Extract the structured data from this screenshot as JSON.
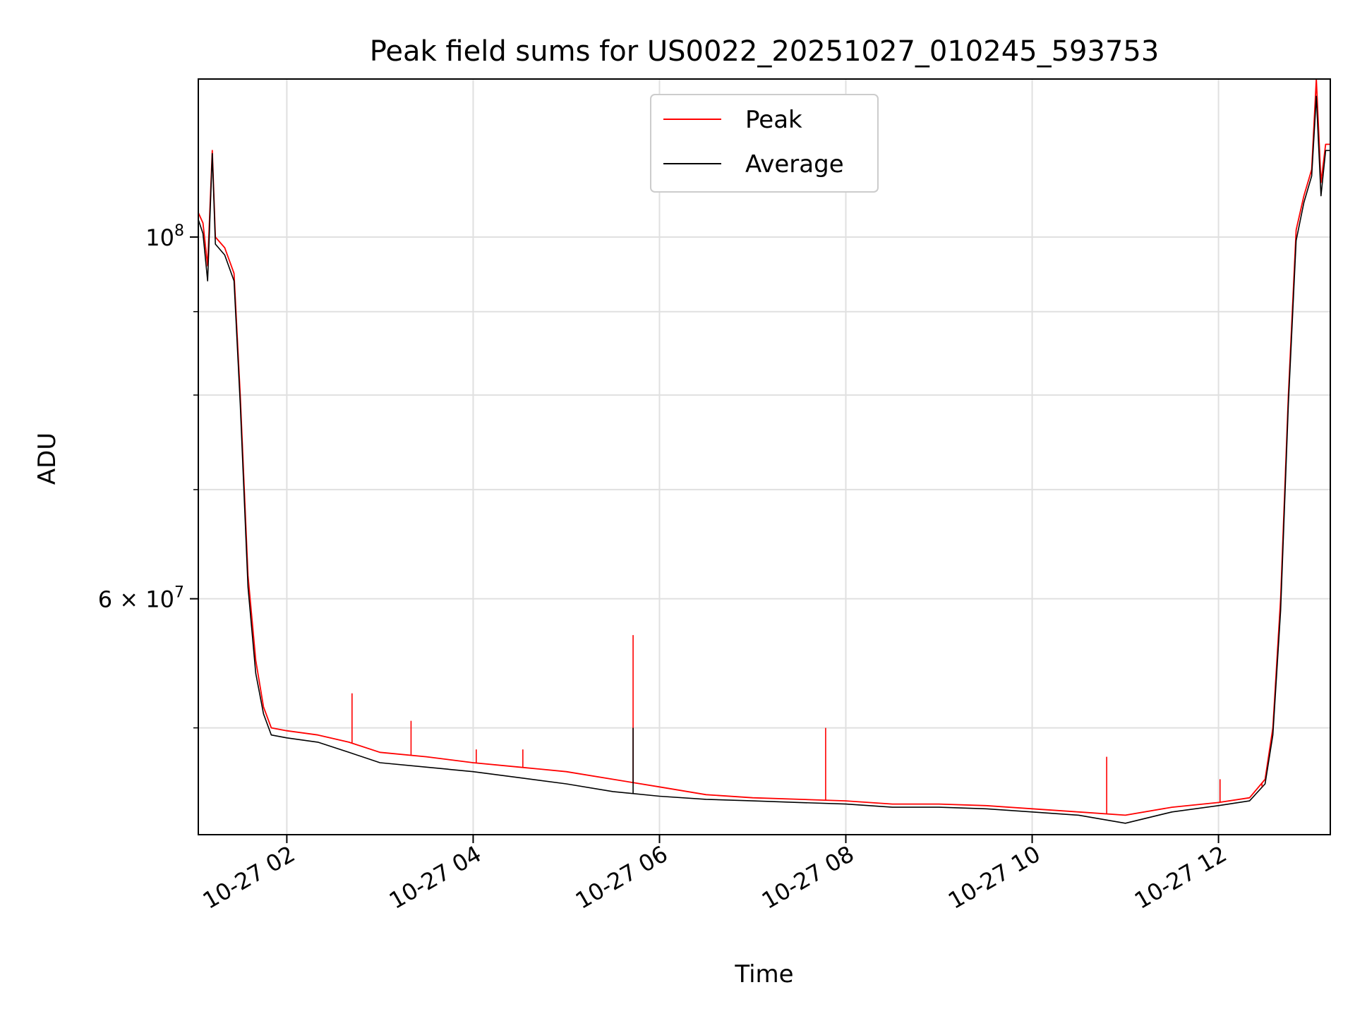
{
  "chart_data": {
    "type": "line",
    "title": "Peak field sums for US0022_20251027_010245_593753",
    "xlabel": "Time",
    "ylabel": "ADU",
    "y_scale": "log",
    "grid": true,
    "legend_position": "top-center",
    "xlim": [
      "2025-10-27 01:03",
      "2025-10-27 13:12"
    ],
    "ylim": [
      43000000,
      125000000
    ],
    "x_ticks": [
      {
        "value": "2025-10-27 02:00",
        "label": "10-27 02"
      },
      {
        "value": "2025-10-27 04:00",
        "label": "10-27 04"
      },
      {
        "value": "2025-10-27 06:00",
        "label": "10-27 06"
      },
      {
        "value": "2025-10-27 08:00",
        "label": "10-27 08"
      },
      {
        "value": "2025-10-27 10:00",
        "label": "10-27 10"
      },
      {
        "value": "2025-10-27 12:00",
        "label": "10-27 12"
      }
    ],
    "y_ticks": [
      {
        "value": 100000000,
        "base": "10",
        "exp": "8",
        "mantissa": ""
      },
      {
        "value": 60000000,
        "base": "10",
        "exp": "7",
        "mantissa": "6 × "
      }
    ],
    "y_minor_ticks": [
      50000000,
      70000000,
      80000000,
      90000000
    ],
    "series": [
      {
        "name": "Peak",
        "color": "#ff0000",
        "points": [
          [
            "2025-10-27 01:03",
            103500000
          ],
          [
            "2025-10-27 01:06",
            102000000
          ],
          [
            "2025-10-27 01:09",
            96000000
          ],
          [
            "2025-10-27 01:12",
            113000000
          ],
          [
            "2025-10-27 01:14",
            100000000
          ],
          [
            "2025-10-27 01:20",
            98500000
          ],
          [
            "2025-10-27 01:26",
            95000000
          ],
          [
            "2025-10-27 01:30",
            80000000
          ],
          [
            "2025-10-27 01:35",
            62000000
          ],
          [
            "2025-10-27 01:40",
            55000000
          ],
          [
            "2025-10-27 01:45",
            51500000
          ],
          [
            "2025-10-27 01:50",
            50000000
          ],
          [
            "2025-10-27 02:00",
            49800000
          ],
          [
            "2025-10-27 02:20",
            49500000
          ],
          [
            "2025-10-27 02:40",
            49000000
          ],
          [
            "2025-10-27 03:00",
            48300000
          ],
          [
            "2025-10-27 03:30",
            48000000
          ],
          [
            "2025-10-27 04:00",
            47600000
          ],
          [
            "2025-10-27 04:30",
            47300000
          ],
          [
            "2025-10-27 05:00",
            47000000
          ],
          [
            "2025-10-27 05:30",
            46500000
          ],
          [
            "2025-10-27 06:00",
            46000000
          ],
          [
            "2025-10-27 06:30",
            45500000
          ],
          [
            "2025-10-27 07:00",
            45300000
          ],
          [
            "2025-10-27 07:30",
            45200000
          ],
          [
            "2025-10-27 08:00",
            45100000
          ],
          [
            "2025-10-27 08:30",
            44900000
          ],
          [
            "2025-10-27 09:00",
            44900000
          ],
          [
            "2025-10-27 09:30",
            44800000
          ],
          [
            "2025-10-27 10:00",
            44600000
          ],
          [
            "2025-10-27 10:30",
            44400000
          ],
          [
            "2025-10-27 11:00",
            44200000
          ],
          [
            "2025-10-27 11:30",
            44700000
          ],
          [
            "2025-10-27 12:00",
            45000000
          ],
          [
            "2025-10-27 12:20",
            45300000
          ],
          [
            "2025-10-27 12:30",
            46500000
          ],
          [
            "2025-10-27 12:35",
            50000000
          ],
          [
            "2025-10-27 12:40",
            60000000
          ],
          [
            "2025-10-27 12:45",
            80000000
          ],
          [
            "2025-10-27 12:50",
            101000000
          ],
          [
            "2025-10-27 12:55",
            106000000
          ],
          [
            "2025-10-27 13:00",
            110000000
          ],
          [
            "2025-10-27 13:03",
            125000000
          ],
          [
            "2025-10-27 13:06",
            108000000
          ],
          [
            "2025-10-27 13:09",
            114000000
          ],
          [
            "2025-10-27 13:12",
            114000000
          ]
        ]
      },
      {
        "name": "Average",
        "color": "#000000",
        "points": [
          [
            "2025-10-27 01:03",
            102500000
          ],
          [
            "2025-10-27 01:06",
            100500000
          ],
          [
            "2025-10-27 01:09",
            94000000
          ],
          [
            "2025-10-27 01:12",
            112500000
          ],
          [
            "2025-10-27 01:14",
            99000000
          ],
          [
            "2025-10-27 01:20",
            97500000
          ],
          [
            "2025-10-27 01:26",
            94000000
          ],
          [
            "2025-10-27 01:30",
            79000000
          ],
          [
            "2025-10-27 01:35",
            61000000
          ],
          [
            "2025-10-27 01:40",
            54000000
          ],
          [
            "2025-10-27 01:45",
            51000000
          ],
          [
            "2025-10-27 01:50",
            49500000
          ],
          [
            "2025-10-27 02:00",
            49300000
          ],
          [
            "2025-10-27 02:20",
            49000000
          ],
          [
            "2025-10-27 02:40",
            48300000
          ],
          [
            "2025-10-27 03:00",
            47600000
          ],
          [
            "2025-10-27 03:30",
            47300000
          ],
          [
            "2025-10-27 04:00",
            47000000
          ],
          [
            "2025-10-27 04:30",
            46600000
          ],
          [
            "2025-10-27 05:00",
            46200000
          ],
          [
            "2025-10-27 05:30",
            45700000
          ],
          [
            "2025-10-27 06:00",
            45400000
          ],
          [
            "2025-10-27 06:30",
            45200000
          ],
          [
            "2025-10-27 07:00",
            45100000
          ],
          [
            "2025-10-27 07:30",
            45000000
          ],
          [
            "2025-10-27 08:00",
            44900000
          ],
          [
            "2025-10-27 08:30",
            44700000
          ],
          [
            "2025-10-27 09:00",
            44700000
          ],
          [
            "2025-10-27 09:30",
            44600000
          ],
          [
            "2025-10-27 10:00",
            44400000
          ],
          [
            "2025-10-27 10:30",
            44200000
          ],
          [
            "2025-10-27 11:00",
            43700000
          ],
          [
            "2025-10-27 11:30",
            44400000
          ],
          [
            "2025-10-27 12:00",
            44800000
          ],
          [
            "2025-10-27 12:20",
            45100000
          ],
          [
            "2025-10-27 12:30",
            46200000
          ],
          [
            "2025-10-27 12:35",
            49500000
          ],
          [
            "2025-10-27 12:40",
            59000000
          ],
          [
            "2025-10-27 12:45",
            79000000
          ],
          [
            "2025-10-27 12:50",
            99500000
          ],
          [
            "2025-10-27 12:55",
            105000000
          ],
          [
            "2025-10-27 13:00",
            109000000
          ],
          [
            "2025-10-27 13:03",
            122000000
          ],
          [
            "2025-10-27 13:06",
            106000000
          ],
          [
            "2025-10-27 13:09",
            113000000
          ],
          [
            "2025-10-27 13:12",
            113000000
          ]
        ]
      }
    ],
    "spikes": [
      {
        "series": "Peak",
        "x": "2025-10-27 02:42",
        "y": 52500000
      },
      {
        "series": "Peak",
        "x": "2025-10-27 03:20",
        "y": 50500000
      },
      {
        "series": "Peak",
        "x": "2025-10-27 04:02",
        "y": 48500000
      },
      {
        "series": "Peak",
        "x": "2025-10-27 04:32",
        "y": 48500000
      },
      {
        "series": "Peak",
        "x": "2025-10-27 05:43",
        "y": 57000000
      },
      {
        "series": "Average",
        "x": "2025-10-27 05:43",
        "y": 50000000
      },
      {
        "series": "Peak",
        "x": "2025-10-27 07:47",
        "y": 50000000
      },
      {
        "series": "Peak",
        "x": "2025-10-27 10:48",
        "y": 48000000
      },
      {
        "series": "Peak",
        "x": "2025-10-27 12:01",
        "y": 46500000
      },
      {
        "series": "Peak",
        "x": "2025-10-27 12:28",
        "y": 46000000
      }
    ]
  }
}
